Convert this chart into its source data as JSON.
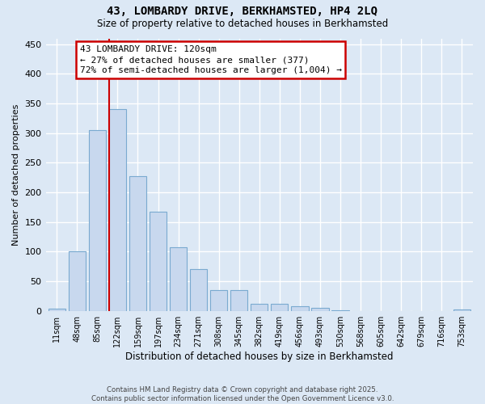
{
  "title": "43, LOMBARDY DRIVE, BERKHAMSTED, HP4 2LQ",
  "subtitle": "Size of property relative to detached houses in Berkhamsted",
  "xlabel": "Distribution of detached houses by size in Berkhamsted",
  "ylabel": "Number of detached properties",
  "footer_line1": "Contains HM Land Registry data © Crown copyright and database right 2025.",
  "footer_line2": "Contains public sector information licensed under the Open Government Licence v3.0.",
  "categories": [
    "11sqm",
    "48sqm",
    "85sqm",
    "122sqm",
    "159sqm",
    "197sqm",
    "234sqm",
    "271sqm",
    "308sqm",
    "345sqm",
    "382sqm",
    "419sqm",
    "456sqm",
    "493sqm",
    "530sqm",
    "568sqm",
    "605sqm",
    "642sqm",
    "679sqm",
    "716sqm",
    "753sqm"
  ],
  "values": [
    4,
    101,
    305,
    340,
    228,
    167,
    108,
    70,
    35,
    35,
    12,
    12,
    8,
    5,
    1,
    0,
    0,
    0,
    0,
    0,
    2
  ],
  "bar_color": "#c8d8ee",
  "bar_edge_color": "#7aaad0",
  "background_color": "#dce8f5",
  "grid_color": "#ffffff",
  "annotation_line1": "43 LOMBARDY DRIVE: 120sqm",
  "annotation_line2": "← 27% of detached houses are smaller (377)",
  "annotation_line3": "72% of semi-detached houses are larger (1,004) →",
  "annotation_box_facecolor": "#ffffff",
  "annotation_box_edgecolor": "#cc0000",
  "vline_color": "#cc0000",
  "vline_x_index": 3,
  "ylim": [
    0,
    460
  ],
  "yticks": [
    0,
    50,
    100,
    150,
    200,
    250,
    300,
    350,
    400,
    450
  ]
}
